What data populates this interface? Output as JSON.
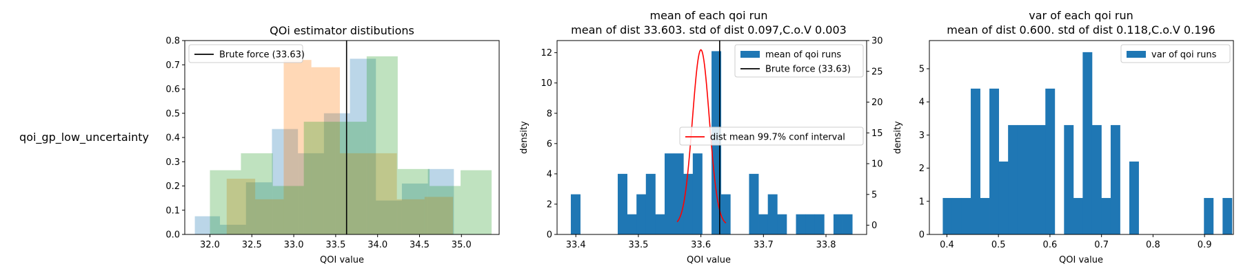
{
  "row_label": "qoi_gp_low_uncertainty",
  "chart_data": [
    {
      "id": "p1",
      "type": "bar",
      "title": "QOi estimator distibutions",
      "xlabel": "QOI value",
      "ylabel": "",
      "xlim": [
        31.7,
        35.45
      ],
      "ylim": [
        0,
        0.8
      ],
      "xticks": [
        32.0,
        32.5,
        33.0,
        33.5,
        34.0,
        34.5,
        35.0
      ],
      "xtick_labels": [
        "32.0",
        "32.5",
        "33.0",
        "33.5",
        "34.0",
        "34.5",
        "35.0"
      ],
      "yticks": [
        0.0,
        0.1,
        0.2,
        0.3,
        0.4,
        0.5,
        0.6,
        0.7,
        0.8
      ],
      "ytick_labels": [
        "0.0",
        "0.1",
        "0.2",
        "0.3",
        "0.4",
        "0.5",
        "0.6",
        "0.7",
        "0.8"
      ],
      "legend": {
        "position": "upper-left",
        "entries": [
          {
            "label": "Brute force (33.63)",
            "color": "#000000",
            "kind": "line"
          }
        ]
      },
      "vline": {
        "x": 33.63,
        "color": "#000000"
      },
      "series": [
        {
          "color": "#1f77b4",
          "alpha": 0.3,
          "bins": [
            [
              31.82,
              32.12,
              0.075
            ],
            [
              32.12,
              32.43,
              0.04
            ],
            [
              32.43,
              32.74,
              0.215
            ],
            [
              32.74,
              33.05,
              0.435
            ],
            [
              33.05,
              33.36,
              0.335
            ],
            [
              33.36,
              33.67,
              0.5
            ],
            [
              33.67,
              33.98,
              0.725
            ],
            [
              33.98,
              34.29,
              0.14
            ],
            [
              34.29,
              34.6,
              0.21
            ],
            [
              34.6,
              34.91,
              0.27
            ]
          ]
        },
        {
          "color": "#ff7f0e",
          "alpha": 0.3,
          "bins": [
            [
              32.2,
              32.54,
              0.23
            ],
            [
              32.54,
              32.88,
              0.145
            ],
            [
              32.88,
              33.21,
              0.72
            ],
            [
              33.21,
              33.55,
              0.69
            ],
            [
              33.55,
              33.89,
              0.335
            ],
            [
              33.89,
              34.23,
              0.335
            ],
            [
              34.23,
              34.56,
              0.145
            ],
            [
              34.56,
              34.9,
              0.155
            ]
          ]
        },
        {
          "color": "#2ca02c",
          "alpha": 0.3,
          "bins": [
            [
              32.0,
              32.37,
              0.265
            ],
            [
              32.37,
              32.75,
              0.335
            ],
            [
              32.75,
              33.12,
              0.2
            ],
            [
              33.12,
              33.5,
              0.465
            ],
            [
              33.5,
              33.87,
              0.465
            ],
            [
              33.87,
              34.24,
              0.735
            ],
            [
              34.24,
              34.62,
              0.27
            ],
            [
              34.62,
              34.99,
              0.2
            ],
            [
              34.99,
              35.36,
              0.265
            ]
          ]
        }
      ]
    },
    {
      "id": "p2",
      "type": "bar",
      "title": "mean of each qoi run",
      "subtitle": "mean of dist 33.603. std of dist 0.097,C.o.V 0.003",
      "xlabel": "QOI value",
      "ylabel": "density",
      "xlim": [
        33.37,
        33.865
      ],
      "ylim": [
        0,
        12.8
      ],
      "xticks": [
        33.4,
        33.5,
        33.6,
        33.7,
        33.8
      ],
      "xtick_labels": [
        "33.4",
        "33.5",
        "33.6",
        "33.7",
        "33.8"
      ],
      "yticks": [
        0,
        2,
        4,
        6,
        8,
        10,
        12
      ],
      "ytick_labels": [
        "0",
        "2",
        "4",
        "6",
        "8",
        "10",
        "12"
      ],
      "y2lim": [
        -1.5,
        30
      ],
      "y2ticks": [
        0,
        5,
        10,
        15,
        20,
        25,
        30
      ],
      "y2tick_labels": [
        "0",
        "5",
        "10",
        "15",
        "20",
        "25",
        "30"
      ],
      "bar_color": "#1f77b4",
      "bin_width": 0.015,
      "bin_start": 33.392,
      "counts": [
        2.65,
        0,
        0,
        0,
        0,
        4.0,
        1.33,
        2.65,
        4.0,
        1.33,
        5.35,
        5.35,
        4.0,
        5.35,
        0,
        12.1,
        2.65,
        0,
        0,
        4.0,
        1.33,
        2.65,
        1.33,
        0,
        1.33,
        1.33,
        1.33,
        0,
        1.33,
        1.33
      ],
      "vline": {
        "x": 33.63,
        "color": "#000000"
      },
      "curve": {
        "color": "#ff0000",
        "mean": 33.6,
        "std": 0.0135,
        "peak": 28.5,
        "x_from": 33.562,
        "x_to": 33.64
      },
      "legend": {
        "position": "upper-right",
        "entries": [
          {
            "label": "mean of qoi runs",
            "color": "#1f77b4",
            "kind": "patch"
          },
          {
            "label": "Brute force (33.63)",
            "color": "#000000",
            "kind": "line"
          }
        ]
      },
      "legend2": {
        "position": "center-right",
        "entries": [
          {
            "label": "dist mean 99.7% conf interval",
            "color": "#ff0000",
            "kind": "line"
          }
        ]
      }
    },
    {
      "id": "p3",
      "type": "bar",
      "title": "var of each qoi run",
      "subtitle": "mean of dist 0.600. std of dist 0.118,C.o.V 0.196",
      "xlabel": "QOI value",
      "ylabel": "density",
      "xlim": [
        0.366,
        0.956
      ],
      "ylim": [
        0,
        5.85
      ],
      "xticks": [
        0.4,
        0.5,
        0.6,
        0.7,
        0.8,
        0.9
      ],
      "xtick_labels": [
        "0.4",
        "0.5",
        "0.6",
        "0.7",
        "0.8",
        "0.9"
      ],
      "yticks": [
        0,
        1,
        2,
        3,
        4,
        5
      ],
      "ytick_labels": [
        "0",
        "1",
        "2",
        "3",
        "4",
        "5"
      ],
      "bar_color": "#1f77b4",
      "bin_width": 0.0181,
      "bin_start": 0.392,
      "counts": [
        1.1,
        1.1,
        1.1,
        4.4,
        1.1,
        4.4,
        2.2,
        3.3,
        3.3,
        3.3,
        3.3,
        4.4,
        0,
        3.3,
        1.1,
        5.5,
        3.3,
        1.1,
        3.3,
        0,
        2.2,
        0,
        0,
        0,
        0,
        0,
        0,
        0,
        1.1,
        0,
        1.1,
        0,
        1.1,
        0,
        0,
        0,
        0,
        1.1
      ],
      "legend": {
        "position": "upper-right",
        "entries": [
          {
            "label": "var of qoi runs",
            "color": "#1f77b4",
            "kind": "patch"
          }
        ]
      }
    }
  ]
}
